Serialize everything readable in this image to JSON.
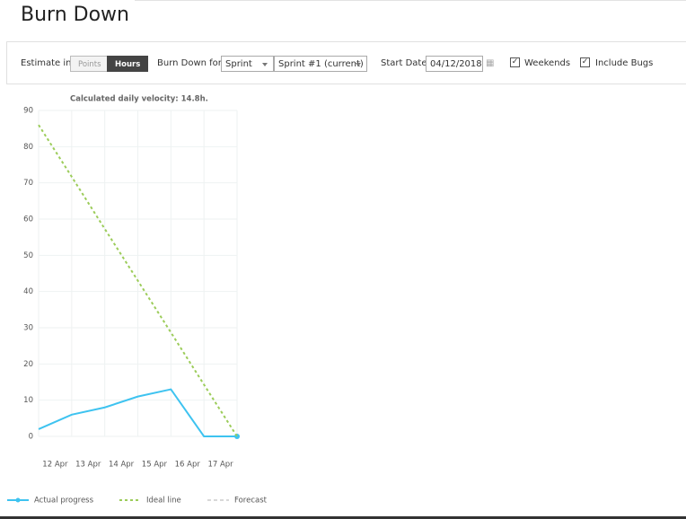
{
  "header": {
    "title": "Burn Down"
  },
  "toolbar": {
    "estimate_label": "Estimate in",
    "estimate_options": [
      "Points",
      "Hours"
    ],
    "burn_label": "Burn Down for",
    "burn_type": "Sprint",
    "sprint": "Sprint #1 (current)",
    "start_label": "Start Date",
    "start_date": "04/12/2018",
    "weekends": "Weekends",
    "bugs": "Include Bugs"
  },
  "chart_data": {
    "type": "line",
    "subtitle": "Calculated daily velocity: 14.8h.",
    "categories": [
      "12 Apr",
      "13 Apr",
      "14 Apr",
      "15 Apr",
      "16 Apr",
      "17 Apr",
      null
    ],
    "series": [
      {
        "name": "Actual progress",
        "color": "#3ec3f0",
        "values": [
          2,
          6,
          8,
          11,
          13,
          0,
          0
        ]
      },
      {
        "name": "Ideal line",
        "color": "#9ccc5a",
        "values": [
          86,
          71.7,
          57.3,
          43,
          28.7,
          14.3,
          0
        ]
      },
      {
        "name": "Forecast",
        "color": "#d8d8d8",
        "values": [
          null,
          null,
          null,
          null,
          null,
          null,
          null
        ]
      }
    ],
    "ylim": [
      0,
      90
    ],
    "yticks": [
      0,
      10,
      20,
      30,
      40,
      50,
      60,
      70,
      80,
      90
    ],
    "grid": true
  }
}
